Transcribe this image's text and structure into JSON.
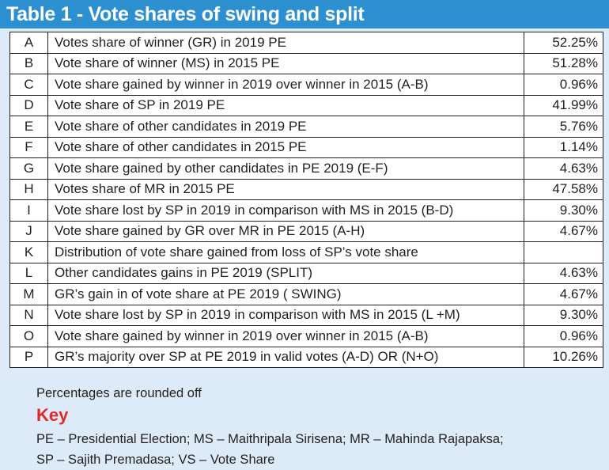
{
  "title": "Table 1 - Vote shares of swing and split",
  "rows": [
    {
      "code": "A",
      "desc": "Votes share of  winner (GR) in 2019   PE",
      "pct": "52.25%"
    },
    {
      "code": "B",
      "desc": "Vote share of winner (MS) in 2015   PE",
      "pct": "51.28%"
    },
    {
      "code": "C",
      "desc": "Vote share gained by winner in 2019 over winner  in 2015 (A-B)",
      "pct": "0.96%"
    },
    {
      "code": "D",
      "desc": "Vote share of SP  in 2019   PE",
      "pct": "41.99%"
    },
    {
      "code": "E",
      "desc": "Vote share of other candidates in 2019 PE",
      "pct": "5.76%"
    },
    {
      "code": "F",
      "desc": "Vote share of other candidates in 2015 PE",
      "pct": "1.14%"
    },
    {
      "code": "G",
      "desc": "Vote share gained by  other candidates in PE 2019     (E-F)",
      "pct": "4.63%"
    },
    {
      "code": "H",
      "desc": "Votes share of MR in 2015   PE",
      "pct": "47.58%"
    },
    {
      "code": "I",
      "desc": "Vote share lost by SP in 2019 in comparison with MS in 2015 (B-D)",
      "pct": "9.30%"
    },
    {
      "code": "J",
      "desc": "Vote share gained by  GR over MR in PE 2015             (A-H)",
      "pct": "4.67%"
    },
    {
      "code": "K",
      "desc": "Distribution of vote share gained from loss of SP’s vote share",
      "pct": ""
    },
    {
      "code": "L",
      "desc": "Other candidates gains  in PE 2019  (SPLIT)",
      "pct": "4.63%"
    },
    {
      "code": "M",
      "desc": "GR’s gain in of vote share at  PE 2019 ( SWING)",
      "pct": "4.67%"
    },
    {
      "code": "N",
      "desc": "Vote share lost by SP in 2019 in comparison with MS in 2015 (L +M)",
      "pct": "9.30%"
    },
    {
      "code": "O",
      "desc": "Vote share gained by winner in 2019 over winner  in 2015 (A-B)",
      "pct": "0.96%"
    },
    {
      "code": "P",
      "desc": "GR’s majority over SP at PE 2019 in valid votes  (A-D) OR (N+O)",
      "pct": "10.26%"
    }
  ],
  "note": "Percentages are rounded off",
  "key": {
    "heading": "Key",
    "line1": "PE – Presidential Election; MS – Maithripala Sirisena; MR – Mahinda Rajapaksa;",
    "line2": "SP – Sajith  Premadasa; VS – Vote Share"
  },
  "colors": {
    "title_bg": "#2b8fd0",
    "panel_bg": "#dcebf7",
    "key_heading": "#e02a2a"
  }
}
